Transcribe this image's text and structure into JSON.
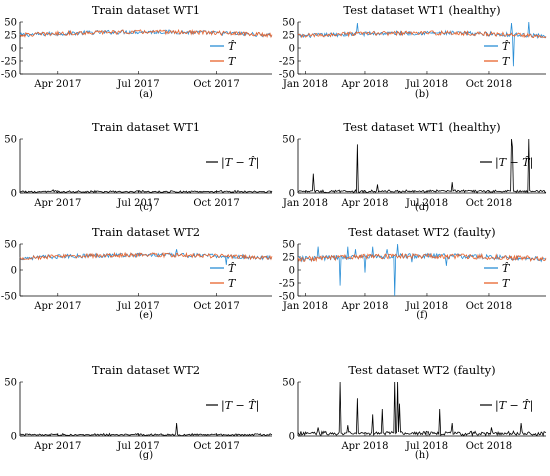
{
  "figure": {
    "subfigure_labels": [
      "(a)",
      "(b)",
      "(c)",
      "(d)",
      "(e)",
      "(f)",
      "(g)",
      "(h)"
    ]
  },
  "colors": {
    "estimate": "#2b8fd6",
    "actual": "#e8632c",
    "residual": "#000000"
  },
  "chart_data": [
    {
      "type": "line",
      "title": "Train dataset WT1",
      "x_ticks": [
        "Apr 2017",
        "Jul 2017",
        "Oct 2017"
      ],
      "y_ticks": [
        "50",
        "25",
        "0",
        "-25",
        "-50"
      ],
      "ylim": [
        -50,
        50
      ],
      "legend_position": "right",
      "legend": [
        "T̂",
        "T"
      ],
      "series": [
        {
          "name": "T̂",
          "color": "#2b8fd6",
          "mean": 28,
          "noise": 4,
          "seasonal_amplitude": 6
        },
        {
          "name": "T",
          "color": "#e8632c",
          "mean": 28,
          "noise": 4,
          "seasonal_amplitude": 6
        }
      ]
    },
    {
      "type": "line",
      "title": "Test dataset WT1 (healthy)",
      "x_ticks": [
        "Jan 2018",
        "Apr 2018",
        "Jul 2018",
        "Oct 2018"
      ],
      "y_ticks": [
        "50",
        "25",
        "0",
        "-25",
        "-50"
      ],
      "ylim": [
        -50,
        50
      ],
      "legend_position": "right",
      "legend": [
        "T̂",
        "T"
      ],
      "series": [
        {
          "name": "T̂",
          "color": "#2b8fd6",
          "mean": 26,
          "noise": 4,
          "seasonal_amplitude": 6,
          "spikes": [
            [
              0.24,
              48
            ],
            [
              0.86,
              48
            ],
            [
              0.87,
              -35
            ],
            [
              0.93,
              50
            ]
          ]
        },
        {
          "name": "T",
          "color": "#e8632c",
          "mean": 26,
          "noise": 4,
          "seasonal_amplitude": 6
        }
      ]
    },
    {
      "type": "line",
      "title": "Train dataset WT1",
      "x_ticks": [
        "Apr 2017",
        "Jul 2017",
        "Oct 2017"
      ],
      "y_ticks": [
        "50",
        "0"
      ],
      "ylim": [
        0,
        50
      ],
      "legend_position": "right",
      "legend": [
        "|T − T̂|"
      ],
      "series": [
        {
          "name": "|T − T̂|",
          "color": "#000000",
          "mean": 1.5,
          "noise": 1.5,
          "spikes": [
            [
              0.13,
              3
            ]
          ]
        }
      ]
    },
    {
      "type": "line",
      "title": "Test dataset WT1 (healthy)",
      "x_ticks": [
        "Jan 2018",
        "Apr 2018",
        "Jul 2018",
        "Oct 2018"
      ],
      "y_ticks": [
        "50",
        "0"
      ],
      "ylim": [
        0,
        50
      ],
      "legend_position": "right",
      "legend": [
        "|T − T̂|"
      ],
      "series": [
        {
          "name": "|T − T̂|",
          "color": "#000000",
          "mean": 2,
          "noise": 2,
          "spikes": [
            [
              0.06,
              18
            ],
            [
              0.24,
              45
            ],
            [
              0.32,
              8
            ],
            [
              0.62,
              10
            ],
            [
              0.86,
              50
            ],
            [
              0.865,
              42
            ],
            [
              0.93,
              50
            ]
          ]
        }
      ]
    },
    {
      "type": "line",
      "title": "Train dataset WT2",
      "x_ticks": [
        "Apr 2017",
        "Jul 2017",
        "Oct 2017"
      ],
      "y_ticks": [
        "50",
        "0",
        "-50"
      ],
      "ylim": [
        -50,
        50
      ],
      "legend_position": "right",
      "legend": [
        "T̂",
        "T"
      ],
      "series": [
        {
          "name": "T̂",
          "color": "#2b8fd6",
          "mean": 26,
          "noise": 4,
          "seasonal_amplitude": 6,
          "spikes": [
            [
              0.62,
              40
            ],
            [
              0.82,
              10
            ]
          ]
        },
        {
          "name": "T",
          "color": "#e8632c",
          "mean": 26,
          "noise": 4,
          "seasonal_amplitude": 6
        }
      ]
    },
    {
      "type": "line",
      "title": "Test dataset WT2 (faulty)",
      "x_ticks": [
        "Jan 2018",
        "Apr 2018",
        "Jul 2018",
        "Oct 2018"
      ],
      "y_ticks": [
        "50",
        "25",
        "0",
        "-25",
        "-50"
      ],
      "ylim": [
        -50,
        50
      ],
      "legend_position": "right",
      "legend": [
        "T̂",
        "T"
      ],
      "series": [
        {
          "name": "T̂",
          "color": "#2b8fd6",
          "mean": 24,
          "noise": 5,
          "seasonal_amplitude": 6,
          "spikes": [
            [
              0.08,
              45
            ],
            [
              0.17,
              -30
            ],
            [
              0.2,
              45
            ],
            [
              0.23,
              40
            ],
            [
              0.27,
              -5
            ],
            [
              0.3,
              45
            ],
            [
              0.36,
              40
            ],
            [
              0.39,
              -50
            ],
            [
              0.4,
              50
            ],
            [
              0.46,
              15
            ],
            [
              0.6,
              8
            ]
          ]
        },
        {
          "name": "T",
          "color": "#e8632c",
          "mean": 24,
          "noise": 5,
          "seasonal_amplitude": 6
        }
      ]
    },
    {
      "type": "line",
      "title": "Train dataset WT2",
      "x_ticks": [
        "Apr 2017",
        "Jul 2017",
        "Oct 2017"
      ],
      "y_ticks": [
        "50",
        "0"
      ],
      "ylim": [
        0,
        50
      ],
      "legend_position": "right",
      "legend": [
        "|T − T̂|"
      ],
      "series": [
        {
          "name": "|T − T̂|",
          "color": "#000000",
          "mean": 1.5,
          "noise": 1.5,
          "spikes": [
            [
              0.62,
              12
            ]
          ]
        }
      ]
    },
    {
      "type": "line",
      "title": "Test dataset WT2 (faulty)",
      "x_ticks": [
        "Apr 2018",
        "Jul 2018",
        "Oct 2018"
      ],
      "y_ticks": [
        "50",
        "0"
      ],
      "ylim": [
        0,
        50
      ],
      "legend_position": "right",
      "legend": [
        "|T − T̂|"
      ],
      "series": [
        {
          "name": "|T − T̂|",
          "color": "#000000",
          "mean": 3,
          "noise": 3,
          "spikes": [
            [
              0.08,
              8
            ],
            [
              0.17,
              50
            ],
            [
              0.2,
              10
            ],
            [
              0.24,
              35
            ],
            [
              0.3,
              20
            ],
            [
              0.34,
              25
            ],
            [
              0.39,
              50
            ],
            [
              0.4,
              50
            ],
            [
              0.41,
              30
            ],
            [
              0.57,
              25
            ],
            [
              0.62,
              12
            ],
            [
              0.78,
              8
            ],
            [
              0.9,
              12
            ]
          ]
        }
      ]
    }
  ]
}
